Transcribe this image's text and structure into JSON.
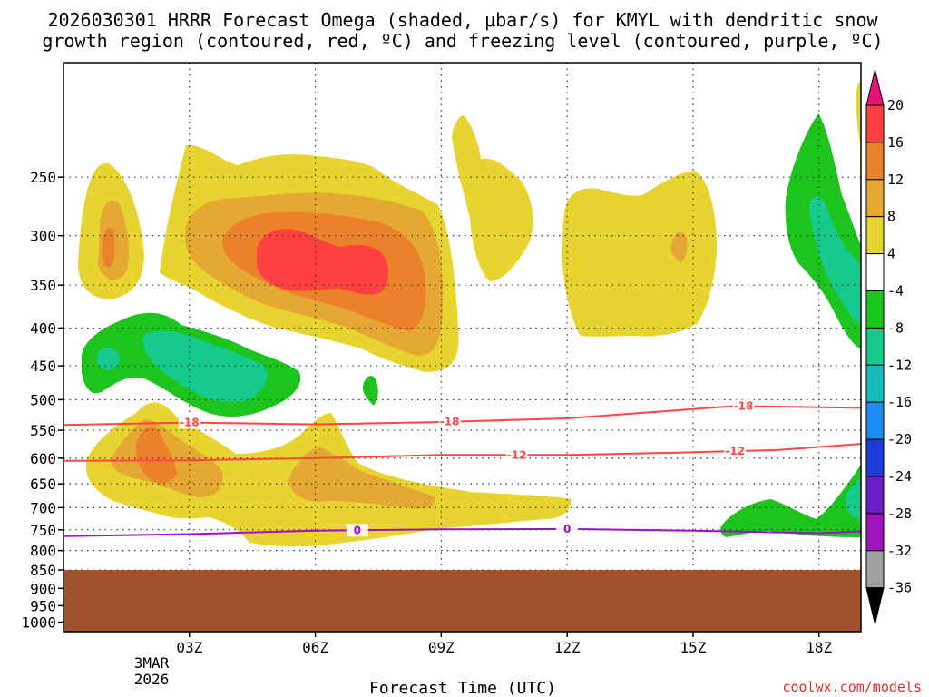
{
  "chart_data": {
    "type": "heatmap",
    "title_line1": "2026030301 HRRR Forecast Omega (shaded, μbar/s) for KMYL with dendritic snow",
    "title_line2": "growth region (contoured, red, ºC) and freezing level (contoured, purple, ºC)",
    "xlabel": "Forecast Time (UTC)",
    "x_ticks": [
      "03Z",
      "06Z",
      "09Z",
      "12Z",
      "15Z",
      "18Z"
    ],
    "x_tick_hours": [
      3,
      6,
      9,
      12,
      15,
      18
    ],
    "x_range_hours": [
      0,
      19
    ],
    "date_line1": "3MAR",
    "date_line2": "2026",
    "y_ticks": [
      250,
      300,
      350,
      400,
      450,
      500,
      550,
      600,
      650,
      700,
      750,
      800,
      850,
      900,
      950,
      1000
    ],
    "y_range_hpa": [
      1030,
      175
    ],
    "ground_top_hpa": 850,
    "credit": "coolwx.com/models",
    "colorbar": {
      "labels": [
        "20",
        "16",
        "12",
        "8",
        "4",
        "-4",
        "-8",
        "-12",
        "-16",
        "-20",
        "-24",
        "-28",
        "-32",
        "-36"
      ],
      "colors": [
        "#e8137a",
        "#ff4040",
        "#ec812b",
        "#e5a832",
        "#e8d430",
        "#ffffff",
        "#1ec41e",
        "#16c98c",
        "#16bcbc",
        "#1e8cf0",
        "#1e3cd7",
        "#6a1ec8",
        "#a014be",
        "#a0a0a0",
        "#000000"
      ]
    },
    "contours": [
      {
        "name": "-18",
        "color": "#ff4444",
        "x": [
          0,
          3,
          6,
          9,
          12,
          15,
          16,
          19
        ],
        "p": [
          541,
          537,
          540,
          536,
          530,
          515,
          510,
          513
        ],
        "label_hours": [
          3.0,
          9.2,
          16.2
        ]
      },
      {
        "name": "-12",
        "color": "#ff4444",
        "x": [
          0,
          3,
          6,
          9,
          12,
          15,
          17,
          19
        ],
        "p": [
          605,
          604,
          600,
          594,
          594,
          589,
          585,
          574
        ],
        "label_hours": [
          10.8,
          16.0
        ]
      },
      {
        "name": "0",
        "color": "#a010c8",
        "x": [
          0,
          3,
          6,
          9,
          12,
          15,
          18,
          19
        ],
        "p": [
          765,
          760,
          752,
          749,
          748,
          752,
          758,
          754
        ],
        "label_hours": [
          7.0,
          12.0
        ]
      }
    ]
  }
}
